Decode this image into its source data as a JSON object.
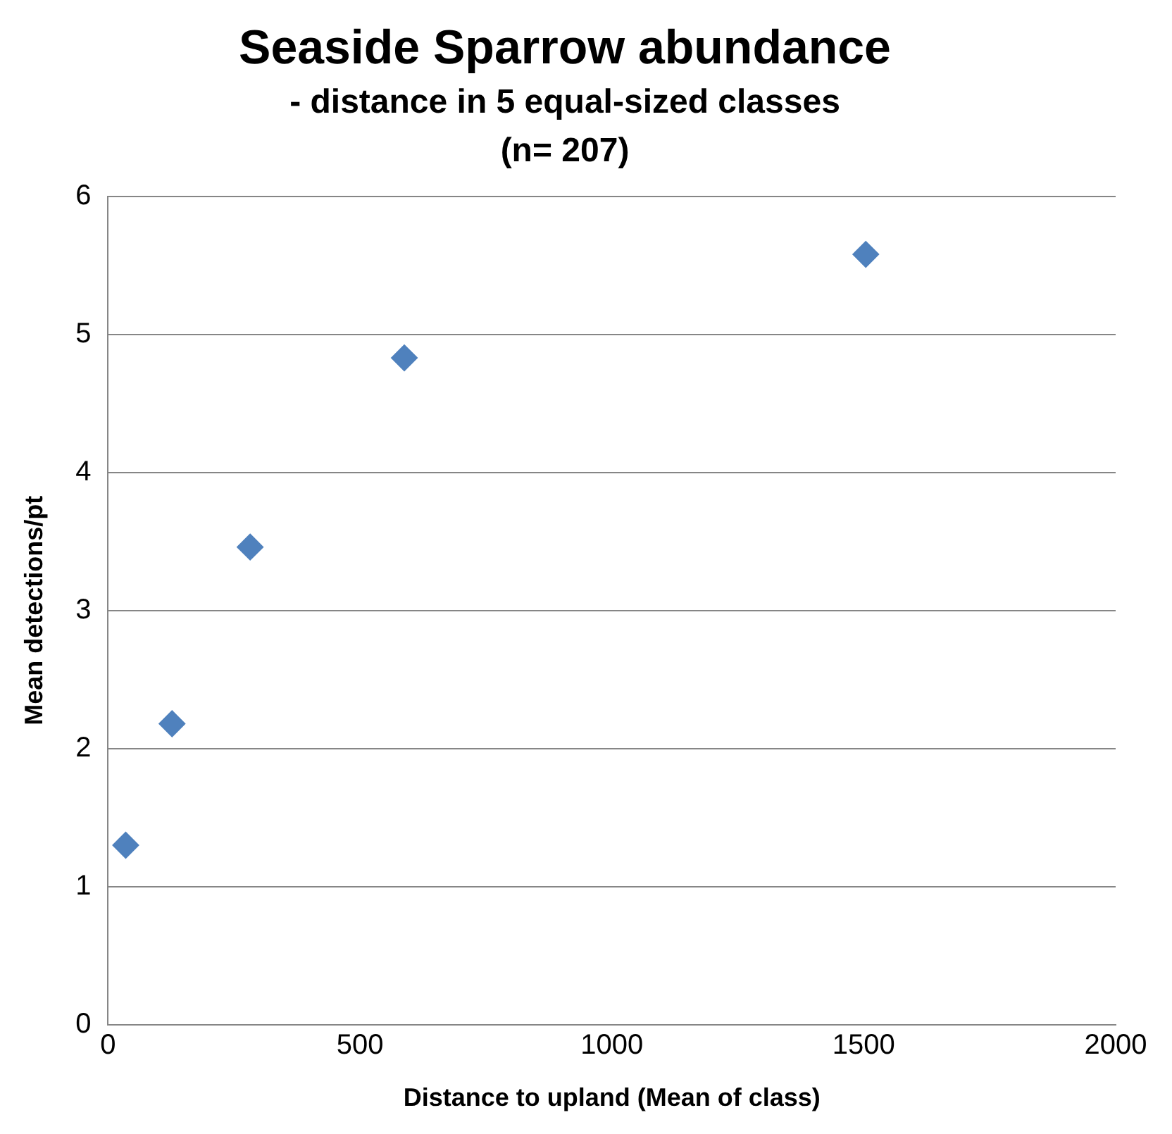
{
  "chart_data": {
    "type": "scatter",
    "title": "Seaside Sparrow abundance",
    "subtitle": "- distance in 5 equal-sized classes\n(n= 207)",
    "xlabel": "Distance to upland (Mean of class)",
    "ylabel": "Mean detections/pt",
    "series": [
      {
        "color": "#4f81bd",
        "x": [
          35,
          127,
          282,
          588,
          1504
        ],
        "values": [
          1.3,
          2.18,
          3.46,
          4.83,
          5.58
        ]
      }
    ],
    "xlim": [
      0,
      2000
    ],
    "xticks": [
      0,
      500,
      1000,
      1500,
      2000
    ],
    "ylim": [
      0,
      6
    ],
    "yticks": [
      0,
      1,
      2,
      3,
      4,
      5,
      6
    ],
    "grid": "y",
    "marker": "diamond",
    "legend": false
  }
}
